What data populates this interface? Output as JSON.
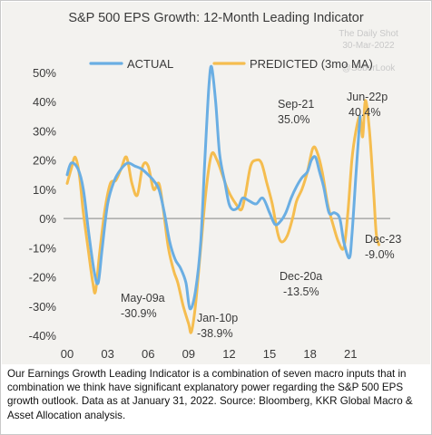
{
  "chart_data": {
    "type": "line",
    "title": "S&P 500 EPS Growth: 12-Month Leading Indicator",
    "xlabel": "",
    "ylabel": "",
    "x_ticks": [
      "00",
      "03",
      "06",
      "09",
      "12",
      "15",
      "18",
      "21"
    ],
    "y_ticks": [
      "50%",
      "40%",
      "30%",
      "20%",
      "10%",
      "0%",
      "-10%",
      "-20%",
      "-30%",
      "-40%"
    ],
    "xlim": [
      2000.0,
      2023.2
    ],
    "ylim": [
      -40,
      50
    ],
    "grid": false,
    "legend": "top",
    "colors": {
      "actual": "#6aaee3",
      "predicted": "#f5bd4f",
      "zero_line": "#9a9a9a"
    },
    "series": [
      {
        "name": "ACTUAL",
        "points": [
          [
            2000.0,
            15
          ],
          [
            2000.3,
            19
          ],
          [
            2000.8,
            17
          ],
          [
            2001.2,
            10
          ],
          [
            2001.6,
            -5
          ],
          [
            2002.0,
            -18
          ],
          [
            2002.3,
            -22
          ],
          [
            2002.6,
            -10
          ],
          [
            2003.0,
            5
          ],
          [
            2003.5,
            13
          ],
          [
            2004.0,
            17
          ],
          [
            2004.5,
            19
          ],
          [
            2005.0,
            18
          ],
          [
            2005.5,
            17
          ],
          [
            2006.0,
            15
          ],
          [
            2006.4,
            13
          ],
          [
            2006.8,
            10
          ],
          [
            2007.2,
            2
          ],
          [
            2007.6,
            -8
          ],
          [
            2008.0,
            -14
          ],
          [
            2008.4,
            -17
          ],
          [
            2008.8,
            -22
          ],
          [
            2009.1,
            -30.9
          ],
          [
            2009.5,
            -25
          ],
          [
            2009.9,
            -8
          ],
          [
            2010.2,
            20
          ],
          [
            2010.5,
            45
          ],
          [
            2010.7,
            52
          ],
          [
            2011.0,
            40
          ],
          [
            2011.3,
            22
          ],
          [
            2011.7,
            12
          ],
          [
            2012.0,
            5
          ],
          [
            2012.3,
            3
          ],
          [
            2012.7,
            4
          ],
          [
            2013.0,
            7
          ],
          [
            2013.5,
            6
          ],
          [
            2014.0,
            5
          ],
          [
            2014.5,
            7
          ],
          [
            2015.0,
            2
          ],
          [
            2015.4,
            -2
          ],
          [
            2015.8,
            -1
          ],
          [
            2016.2,
            2
          ],
          [
            2016.6,
            7
          ],
          [
            2017.0,
            11
          ],
          [
            2017.4,
            14
          ],
          [
            2017.8,
            16
          ],
          [
            2018.1,
            20
          ],
          [
            2018.4,
            21
          ],
          [
            2018.7,
            16
          ],
          [
            2019.0,
            11
          ],
          [
            2019.4,
            2
          ],
          [
            2019.8,
            2
          ],
          [
            2020.2,
            0
          ],
          [
            2020.5,
            -8
          ],
          [
            2020.9,
            -13.5
          ],
          [
            2021.1,
            -6
          ],
          [
            2021.4,
            15
          ],
          [
            2021.7,
            35.0
          ]
        ]
      },
      {
        "name": "PREDICTED (3mo MA)",
        "points": [
          [
            2000.0,
            12
          ],
          [
            2000.3,
            17
          ],
          [
            2000.6,
            21
          ],
          [
            2000.9,
            15
          ],
          [
            2001.2,
            2
          ],
          [
            2001.6,
            -12
          ],
          [
            2001.9,
            -22
          ],
          [
            2002.1,
            -25
          ],
          [
            2002.4,
            -12
          ],
          [
            2002.8,
            3
          ],
          [
            2003.2,
            12
          ],
          [
            2003.6,
            13
          ],
          [
            2004.0,
            17
          ],
          [
            2004.4,
            21
          ],
          [
            2004.8,
            12
          ],
          [
            2005.2,
            8
          ],
          [
            2005.6,
            18
          ],
          [
            2006.0,
            18
          ],
          [
            2006.4,
            10
          ],
          [
            2006.8,
            12
          ],
          [
            2007.1,
            4
          ],
          [
            2007.5,
            -10
          ],
          [
            2007.9,
            -18
          ],
          [
            2008.2,
            -22
          ],
          [
            2008.6,
            -30
          ],
          [
            2009.0,
            -36
          ],
          [
            2009.2,
            -38.9
          ],
          [
            2009.5,
            -30
          ],
          [
            2009.9,
            -10
          ],
          [
            2010.3,
            10
          ],
          [
            2010.7,
            22
          ],
          [
            2011.1,
            20
          ],
          [
            2011.5,
            15
          ],
          [
            2011.8,
            11
          ],
          [
            2012.1,
            8
          ],
          [
            2012.5,
            5
          ],
          [
            2012.9,
            3
          ],
          [
            2013.2,
            8
          ],
          [
            2013.6,
            18
          ],
          [
            2014.0,
            20
          ],
          [
            2014.4,
            19
          ],
          [
            2014.8,
            12
          ],
          [
            2015.2,
            5
          ],
          [
            2015.6,
            -5
          ],
          [
            2015.9,
            -8
          ],
          [
            2016.3,
            -6
          ],
          [
            2016.7,
            0
          ],
          [
            2017.0,
            6
          ],
          [
            2017.4,
            10
          ],
          [
            2017.8,
            16
          ],
          [
            2018.2,
            24
          ],
          [
            2018.5,
            23
          ],
          [
            2018.9,
            16
          ],
          [
            2019.3,
            5
          ],
          [
            2019.7,
            -2
          ],
          [
            2020.1,
            -8
          ],
          [
            2020.5,
            -10
          ],
          [
            2020.8,
            2
          ],
          [
            2021.1,
            20
          ],
          [
            2021.4,
            30
          ],
          [
            2021.7,
            35
          ],
          [
            2021.9,
            28
          ],
          [
            2022.1,
            40.4
          ],
          [
            2022.4,
            30
          ],
          [
            2022.7,
            10
          ],
          [
            2022.9,
            -5
          ],
          [
            2023.1,
            -9.0
          ]
        ]
      }
    ],
    "annotations": [
      {
        "label": "May-09a",
        "value": "-30.9%"
      },
      {
        "label": "Jan-10p",
        "value": "-38.9%"
      },
      {
        "label": "Sep-21",
        "value": "35.0%"
      },
      {
        "label": "Jun-22p",
        "value": "40.4%"
      },
      {
        "label": "Dec-20a",
        "value": "-13.5%"
      },
      {
        "label": "Dec-23",
        "value": "-9.0%"
      }
    ]
  },
  "watermark": {
    "line1": "The Daily Shot",
    "line2": "30-Mar-2022",
    "line3": "@SoberLook"
  },
  "caption": "Our Earnings Growth Leading Indicator is a combination of seven macro inputs that in combination we think have significant explanatory power regarding the S&P 500 EPS growth outlook. Data as at January 31, 2022. Source: Bloomberg, KKR Global Macro & Asset Allocation analysis."
}
